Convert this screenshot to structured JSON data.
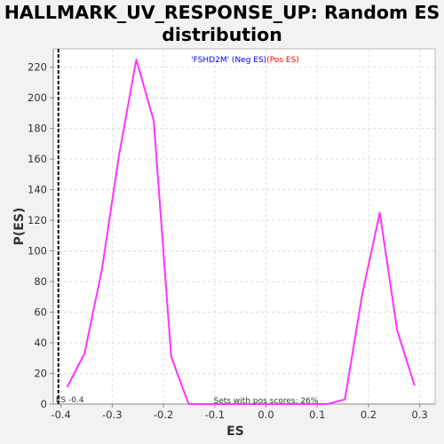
{
  "chart_data": {
    "type": "line",
    "title_line1": "HALLMARK_UV_RESPONSE_UP: Random ES",
    "title_line2": "distribution",
    "xlabel": "ES",
    "ylabel": "P(ES)",
    "xlim": [
      -0.415,
      0.33
    ],
    "ylim": [
      0,
      232
    ],
    "xticks": [
      -0.4,
      -0.3,
      -0.2,
      -0.1,
      0.0,
      0.1,
      0.2,
      0.3
    ],
    "xtick_labels": [
      "-0.4",
      "-0.3",
      "-0.2",
      "-0.1",
      "0.0",
      "0.1",
      "0.2",
      "0.3"
    ],
    "yticks": [
      0,
      20,
      40,
      60,
      80,
      100,
      120,
      140,
      160,
      180,
      200,
      220
    ],
    "ytick_labels": [
      "0",
      "20",
      "40",
      "60",
      "80",
      "100",
      "120",
      "140",
      "160",
      "180",
      "200",
      "220"
    ],
    "grid": true,
    "legend": {
      "placement": "top-center",
      "neg_text": "'FSHD2M' (Neg ES)",
      "pos_text": "(Pos ES)",
      "neg_color": "#0000ff",
      "pos_color": "#ff0000"
    },
    "series": [
      {
        "color": "#ff33ff",
        "x": [
          -0.388,
          -0.354,
          -0.32,
          -0.287,
          -0.253,
          -0.219,
          -0.185,
          -0.151,
          -0.117,
          -0.083,
          -0.05,
          -0.016,
          0.018,
          0.052,
          0.086,
          0.12,
          0.154,
          0.188,
          0.222,
          0.256,
          0.29
        ],
        "y": [
          11,
          33,
          88,
          162,
          225,
          185,
          31,
          0,
          0,
          0,
          0,
          0,
          0,
          0,
          0,
          0,
          3,
          72,
          125,
          48,
          12
        ]
      }
    ],
    "es_line": {
      "x": -0.405,
      "label": "ES -0.4",
      "color": "#000000"
    },
    "annotation": "Sets with pos scores: 26%"
  }
}
